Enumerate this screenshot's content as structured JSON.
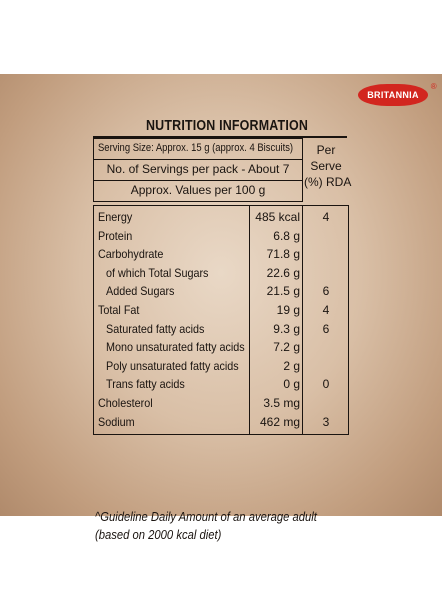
{
  "brand": {
    "logo_text": "BRITANNIA",
    "reg_mark": "®"
  },
  "title": "NUTRITION INFORMATION",
  "serving": {
    "size": "Serving Size: Approx. 15 g (approx. 4 Biscuits)",
    "servings_per_pack": "No. of Servings per pack - About 7",
    "values_basis": "Approx. Values per 100 g"
  },
  "per_serve_header": {
    "line1": "Per",
    "line2": "Serve",
    "line3": "(%) RDA"
  },
  "nutrients": [
    {
      "label": "Energy",
      "value": "485 kcal",
      "rda": "4"
    },
    {
      "label": "Protein",
      "value": "6.8 g",
      "rda": ""
    },
    {
      "label": "Carbohydrate",
      "value": "71.8 g",
      "rda": ""
    },
    {
      "label": "  of which Total Sugars",
      "value": "22.6 g",
      "rda": ""
    },
    {
      "label": "  Added Sugars",
      "value": "21.5 g",
      "rda": "6"
    },
    {
      "label": "Total Fat",
      "value": "19 g",
      "rda": "4"
    },
    {
      "label": "  Saturated fatty acids",
      "value": "9.3 g",
      "rda": "6"
    },
    {
      "label": "  Mono unsaturated fatty acids",
      "value": "7.2 g",
      "rda": ""
    },
    {
      "label": "  Poly unsaturated fatty acids",
      "value": "2 g",
      "rda": ""
    },
    {
      "label": "  Trans fatty acids",
      "value": "0 g",
      "rda": "0"
    },
    {
      "label": "Cholesterol",
      "value": "3.5 mg",
      "rda": ""
    },
    {
      "label": "Sodium",
      "value": "462 mg",
      "rda": "3"
    }
  ],
  "footnote": {
    "line1": "^Guideline Daily Amount of an average adult",
    "line2": "(based on 2000 kcal diet)"
  }
}
